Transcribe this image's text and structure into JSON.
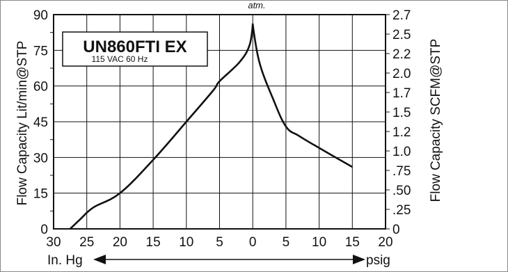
{
  "chart_data": {
    "type": "line",
    "title": "UN860FTI EX",
    "subtitle": "115 VAC 60 Hz",
    "top_annotation": "atm.",
    "ylabel_left": "Flow Capacity Lit/min@STP",
    "ylabel_right": "Flow Capacity SCFM@STP",
    "xlabel_left": "In. Hg",
    "xlabel_right": "psig",
    "x_tick_labels": [
      "30",
      "25",
      "20",
      "15",
      "10",
      "5",
      "0",
      "5",
      "10",
      "15",
      "20"
    ],
    "y_left_ticks": [
      "0",
      "15",
      "30",
      "45",
      "60",
      "75",
      "90"
    ],
    "y_right_ticks": [
      "0",
      ".25",
      ".50",
      ".75",
      "1.0",
      "1.2",
      "1.5",
      "1.7",
      "2.0",
      "2.2",
      "2.5",
      "2.7"
    ],
    "ylim_left": [
      0,
      90
    ],
    "xlim": [
      -30,
      20
    ],
    "grid": true,
    "series": [
      {
        "points": [
          {
            "x": -27.5,
            "y": 0
          },
          {
            "x": -26,
            "y": 4
          },
          {
            "x": -24,
            "y": 9
          },
          {
            "x": -20,
            "y": 15
          },
          {
            "x": -15,
            "y": 29
          },
          {
            "x": -10,
            "y": 45
          },
          {
            "x": -6,
            "y": 58
          },
          {
            "x": -5,
            "y": 62
          },
          {
            "x": -2,
            "y": 70
          },
          {
            "x": -0.5,
            "y": 77
          },
          {
            "x": 0,
            "y": 86
          },
          {
            "x": 1,
            "y": 70
          },
          {
            "x": 3,
            "y": 55
          },
          {
            "x": 5,
            "y": 43
          },
          {
            "x": 7,
            "y": 39
          },
          {
            "x": 10,
            "y": 34
          },
          {
            "x": 15,
            "y": 26
          }
        ]
      }
    ]
  }
}
